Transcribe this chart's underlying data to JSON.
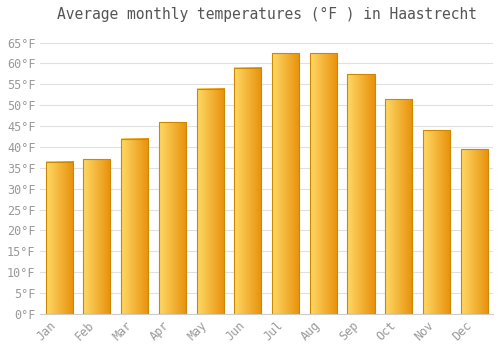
{
  "title": "Average monthly temperatures (°F ) in Haastrecht",
  "months": [
    "Jan",
    "Feb",
    "Mar",
    "Apr",
    "May",
    "Jun",
    "Jul",
    "Aug",
    "Sep",
    "Oct",
    "Nov",
    "Dec"
  ],
  "values": [
    36.5,
    37.0,
    42.0,
    46.0,
    54.0,
    59.0,
    62.5,
    62.5,
    57.5,
    51.5,
    44.0,
    39.5
  ],
  "bar_color_left": "#FFD966",
  "bar_color_mid": "#FFAA00",
  "bar_color_right": "#E8900A",
  "bar_edge_color": "#CC8800",
  "ylim": [
    0,
    68
  ],
  "yticks": [
    0,
    5,
    10,
    15,
    20,
    25,
    30,
    35,
    40,
    45,
    50,
    55,
    60,
    65
  ],
  "ytick_labels": [
    "0°F",
    "5°F",
    "10°F",
    "15°F",
    "20°F",
    "25°F",
    "30°F",
    "35°F",
    "40°F",
    "45°F",
    "50°F",
    "55°F",
    "60°F",
    "65°F"
  ],
  "background_color": "#ffffff",
  "grid_color": "#e0e0e0",
  "title_fontsize": 10.5,
  "tick_fontsize": 8.5,
  "tick_color": "#999999",
  "title_color": "#555555",
  "font_family": "monospace",
  "bar_width": 0.72
}
